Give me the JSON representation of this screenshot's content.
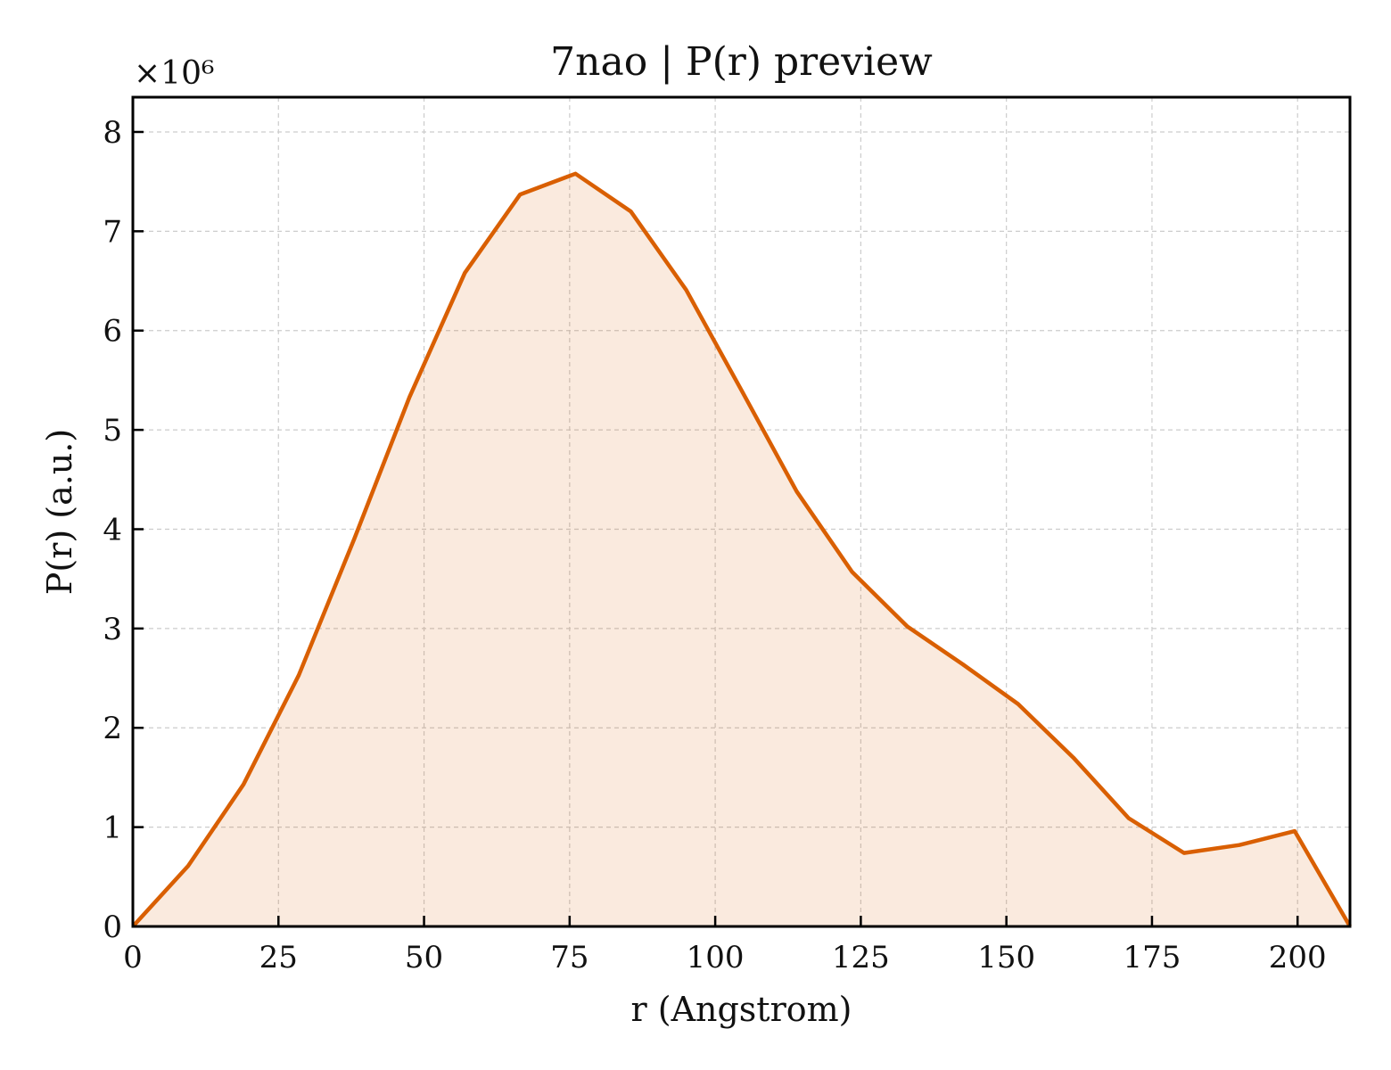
{
  "chart_data": {
    "type": "area",
    "title": "7nao | P(r) preview",
    "xlabel": "r (Angstrom)",
    "ylabel": "P(r) (a.u.)",
    "y_multiplier": "×10⁶",
    "xlim": [
      0,
      209
    ],
    "ylim": [
      0,
      8.35
    ],
    "xticks": [
      0,
      25,
      50,
      75,
      100,
      125,
      150,
      175,
      200
    ],
    "yticks": [
      0,
      1,
      2,
      3,
      4,
      5,
      6,
      7,
      8
    ],
    "grid": true,
    "series": [
      {
        "x": [
          0,
          9.5,
          19,
          28.5,
          38,
          47.5,
          57,
          66.5,
          76,
          85.5,
          95,
          104.5,
          114,
          123.5,
          133,
          142.5,
          152,
          161.5,
          171,
          180.5,
          190,
          199.5,
          209
        ],
        "y": [
          0,
          0.61,
          1.43,
          2.53,
          3.9,
          5.33,
          6.58,
          7.37,
          7.58,
          7.2,
          6.41,
          5.4,
          4.38,
          3.57,
          3.02,
          2.64,
          2.24,
          1.7,
          1.09,
          0.74,
          0.82,
          0.96,
          0
        ],
        "color": "#d95f02"
      }
    ]
  }
}
